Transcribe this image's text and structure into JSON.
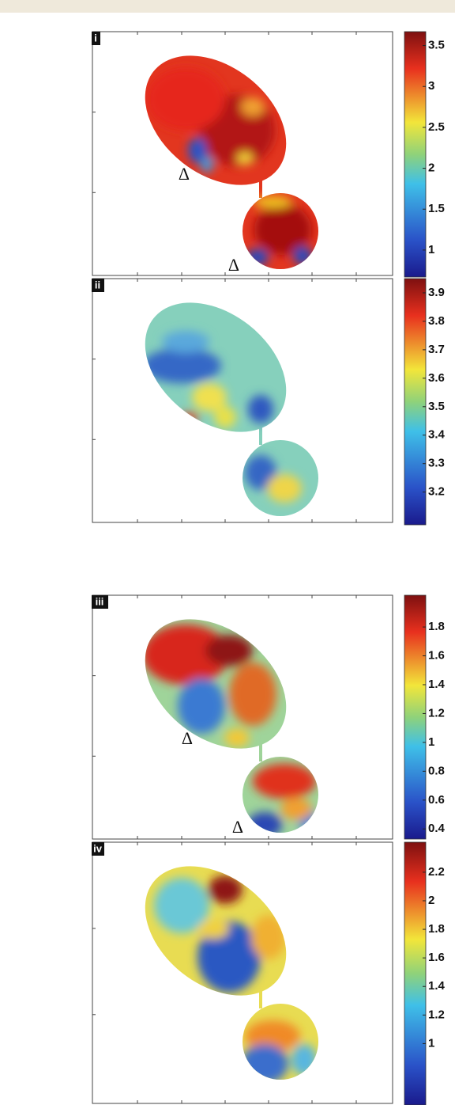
{
  "chart_data": [
    {
      "type": "heatmap",
      "label": "i",
      "annotations": [
        "Δ",
        "Δ"
      ],
      "clim": [
        0.67,
        3.67
      ],
      "cticks": [
        1,
        1.5,
        2,
        2.5,
        3,
        3.5
      ]
    },
    {
      "type": "heatmap",
      "label": "ii",
      "annotations": [],
      "clim": [
        3.085,
        3.95
      ],
      "cticks": [
        3.2,
        3.3,
        3.4,
        3.5,
        3.6,
        3.7,
        3.8,
        3.9
      ]
    },
    {
      "type": "heatmap",
      "label": "iii",
      "annotations": [
        "Δ",
        "Δ"
      ],
      "clim": [
        0.33,
        2.02
      ],
      "cticks": [
        0.4,
        0.6,
        0.8,
        1,
        1.2,
        1.4,
        1.6,
        1.8
      ]
    },
    {
      "type": "heatmap",
      "label": "iv",
      "annotations": [],
      "clim": [
        0.57,
        2.41
      ],
      "cticks": [
        1,
        1.2,
        1.4,
        1.6,
        1.8,
        2,
        2.2
      ]
    }
  ]
}
